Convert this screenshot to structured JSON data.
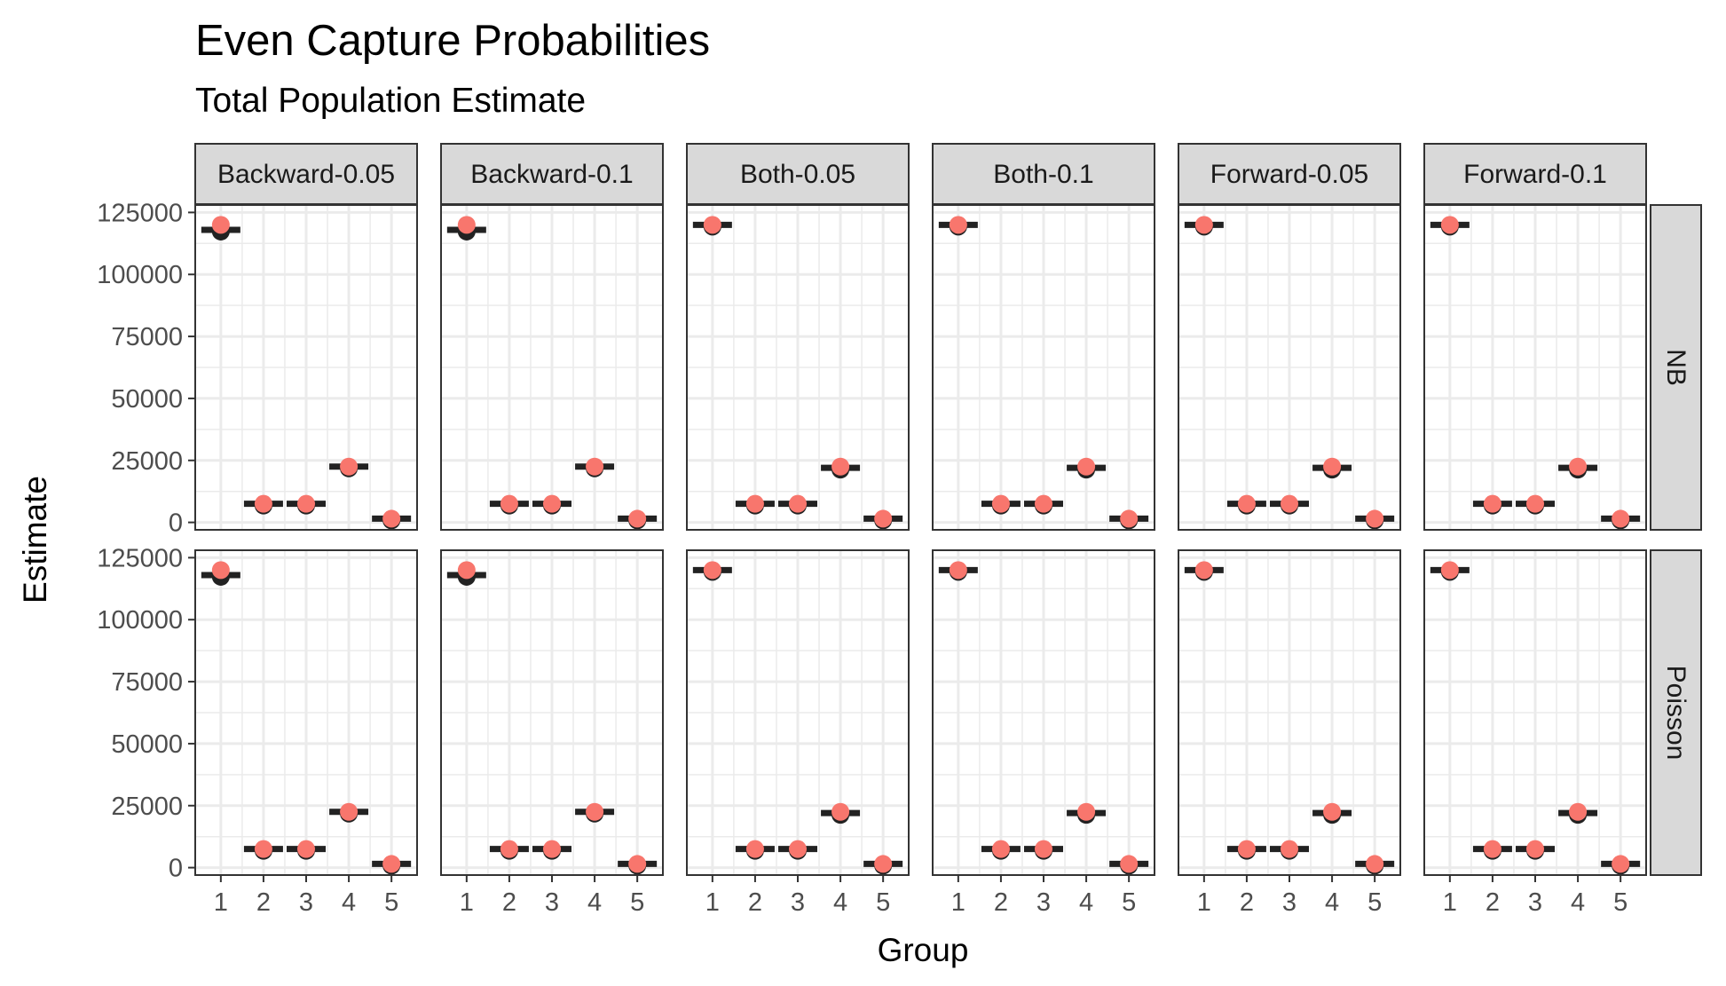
{
  "chart_data": {
    "type": "scatter",
    "title": "Even Capture Probabilities",
    "subtitle": "Total Population Estimate",
    "xlabel": "Group",
    "ylabel": "Estimate",
    "x": [
      1,
      2,
      3,
      4,
      5
    ],
    "ylim": [
      -3000,
      128000
    ],
    "yticks": [
      0,
      25000,
      50000,
      75000,
      100000,
      125000
    ],
    "y_tick_labels": [
      "0",
      "25000",
      "50000",
      "75000",
      "100000",
      "125000"
    ],
    "x_tick_labels": [
      "1",
      "2",
      "3",
      "4",
      "5"
    ],
    "columns": [
      "Backward-0.05",
      "Backward-0.1",
      "Both-0.05",
      "Both-0.1",
      "Forward-0.05",
      "Forward-0.1"
    ],
    "rows": [
      "NB",
      "Poisson"
    ],
    "grid": true,
    "true_values": [
      120000,
      7500,
      7500,
      22500,
      1500
    ],
    "panels": [
      {
        "column": "Backward-0.05",
        "row": "NB",
        "estimates": [
          118000,
          7500,
          7500,
          22500,
          1500
        ]
      },
      {
        "column": "Backward-0.1",
        "row": "NB",
        "estimates": [
          118000,
          7500,
          7500,
          22500,
          1500
        ]
      },
      {
        "column": "Both-0.05",
        "row": "NB",
        "estimates": [
          120000,
          7500,
          7500,
          22000,
          1500
        ]
      },
      {
        "column": "Both-0.1",
        "row": "NB",
        "estimates": [
          120000,
          7500,
          7500,
          22000,
          1500
        ]
      },
      {
        "column": "Forward-0.05",
        "row": "NB",
        "estimates": [
          120000,
          7500,
          7500,
          22000,
          1500
        ]
      },
      {
        "column": "Forward-0.1",
        "row": "NB",
        "estimates": [
          120000,
          7500,
          7500,
          22000,
          1500
        ]
      },
      {
        "column": "Backward-0.05",
        "row": "Poisson",
        "estimates": [
          118000,
          7500,
          7500,
          22500,
          1500
        ]
      },
      {
        "column": "Backward-0.1",
        "row": "Poisson",
        "estimates": [
          118000,
          7500,
          7500,
          22500,
          1500
        ]
      },
      {
        "column": "Both-0.05",
        "row": "Poisson",
        "estimates": [
          120000,
          7500,
          7500,
          22000,
          1500
        ]
      },
      {
        "column": "Both-0.1",
        "row": "Poisson",
        "estimates": [
          120000,
          7500,
          7500,
          22000,
          1500
        ]
      },
      {
        "column": "Forward-0.05",
        "row": "Poisson",
        "estimates": [
          120000,
          7500,
          7500,
          22000,
          1500
        ]
      },
      {
        "column": "Forward-0.1",
        "row": "Poisson",
        "estimates": [
          120000,
          7500,
          7500,
          22000,
          1500
        ]
      }
    ],
    "colors": {
      "estimate": "#222222",
      "true_value": "#F8766D",
      "strip": "#D9D9D9",
      "grid": "#EBEBEB",
      "border": "#333333"
    }
  }
}
